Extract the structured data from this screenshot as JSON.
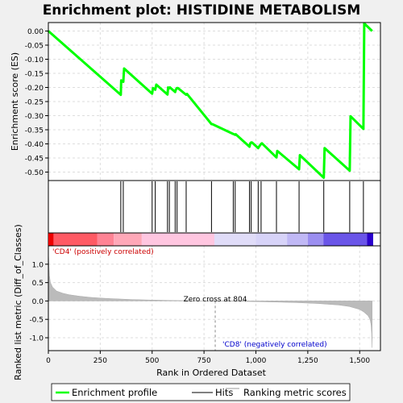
{
  "chart_data": {
    "type": "line",
    "title": "Enrichment plot: HISTIDINE METABOLISM",
    "top_panel": {
      "ylabel": "Enrichment score (ES)",
      "ylim": [
        -0.53,
        0.03
      ],
      "yticks": [
        0.0,
        -0.05,
        -0.1,
        -0.15,
        -0.2,
        -0.25,
        -0.3,
        -0.35,
        -0.4,
        -0.45,
        -0.5
      ],
      "ytick_labels": [
        "0.00",
        "-0.05",
        "-0.10",
        "-0.15",
        "-0.20",
        "-0.25",
        "-0.30",
        "-0.35",
        "-0.40",
        "-0.45",
        "-0.50"
      ],
      "grid": true,
      "line_color": "#00ff00",
      "series": [
        {
          "x": [
            0,
            349,
            351,
            361,
            365,
            500,
            504,
            515,
            520,
            574,
            577,
            583,
            586,
            611,
            614,
            620,
            624,
            664,
            668,
            786,
            790,
            891,
            895,
            900,
            903,
            969,
            973,
            977,
            981,
            1011,
            1015,
            1025,
            1029,
            1099,
            1103,
            1208,
            1212,
            1327,
            1331,
            1452,
            1456,
            1518,
            1522,
            1560
          ],
          "y": [
            0.0,
            -0.226,
            -0.175,
            -0.18,
            -0.133,
            -0.222,
            -0.202,
            -0.208,
            -0.19,
            -0.225,
            -0.2,
            -0.203,
            -0.2,
            -0.216,
            -0.208,
            -0.202,
            -0.202,
            -0.226,
            -0.223,
            -0.33,
            -0.33,
            -0.365,
            -0.366,
            -0.368,
            -0.366,
            -0.41,
            -0.398,
            -0.395,
            -0.395,
            -0.415,
            -0.41,
            -0.4,
            -0.398,
            -0.448,
            -0.425,
            -0.49,
            -0.44,
            -0.52,
            -0.415,
            -0.495,
            -0.302,
            -0.347,
            0.027,
            0.0
          ]
        }
      ]
    },
    "hits": [
      349,
      361,
      500,
      515,
      574,
      583,
      611,
      620,
      664,
      786,
      891,
      900,
      969,
      977,
      1011,
      1025,
      1099,
      1208,
      1327,
      1452,
      1518
    ],
    "bottom_panel": {
      "ylabel": "Ranked list metric (Diff_of_Classes)",
      "xlabel": "Rank in Ordered Dataset",
      "xlim": [
        0,
        1600
      ],
      "xticks": [
        0,
        250,
        500,
        750,
        1000,
        1250,
        1500
      ],
      "xtick_labels": [
        "0",
        "250",
        "500",
        "750",
        "1,000",
        "1,250",
        "1,500"
      ],
      "ylim": [
        -1.35,
        1.5
      ],
      "yticks": [
        1.0,
        0.5,
        0.0,
        -0.5,
        -1.0
      ],
      "ytick_labels": [
        "1.0",
        "0.5",
        "0.0",
        "-0.5",
        "-1.0"
      ],
      "grid": true,
      "metric_curve": {
        "x": [
          0,
          5,
          10,
          20,
          40,
          70,
          100,
          150,
          200,
          250,
          300,
          400,
          500,
          600,
          700,
          800,
          900,
          1000,
          1100,
          1200,
          1300,
          1400,
          1450,
          1500,
          1520,
          1540,
          1550,
          1555,
          1558,
          1560
        ],
        "y": [
          1.35,
          0.7,
          0.5,
          0.38,
          0.27,
          0.21,
          0.17,
          0.13,
          0.1,
          0.08,
          0.065,
          0.04,
          0.025,
          0.014,
          0.006,
          0.0,
          -0.008,
          -0.018,
          -0.03,
          -0.045,
          -0.07,
          -0.11,
          -0.15,
          -0.23,
          -0.3,
          -0.4,
          -0.5,
          -0.65,
          -0.9,
          -1.27
        ]
      },
      "zero_cross_rank": 804,
      "zero_cross_label": "Zero cross at 804",
      "pos_label": "'CD4' (positively correlated)",
      "neg_label": "'CD8' (negatively correlated)",
      "pos_color": "#cc0000",
      "neg_color": "#0000cc"
    },
    "color_bar": [
      {
        "start": 0,
        "end": 25,
        "color": "#ee0000"
      },
      {
        "start": 25,
        "end": 235,
        "color": "#ff5a64"
      },
      {
        "start": 235,
        "end": 315,
        "color": "#ff8394"
      },
      {
        "start": 315,
        "end": 450,
        "color": "#ffa8b8"
      },
      {
        "start": 450,
        "end": 800,
        "color": "#ffc6e0"
      },
      {
        "start": 800,
        "end": 1000,
        "color": "#e0dcf8"
      },
      {
        "start": 1000,
        "end": 1150,
        "color": "#d7d3f8"
      },
      {
        "start": 1150,
        "end": 1250,
        "color": "#c0b8f5"
      },
      {
        "start": 1250,
        "end": 1325,
        "color": "#9b8ef0"
      },
      {
        "start": 1325,
        "end": 1535,
        "color": "#6a55e8"
      },
      {
        "start": 1535,
        "end": 1565,
        "color": "#2a00cc"
      }
    ],
    "legend": {
      "placement": "bottom",
      "items": [
        {
          "label": "Enrichment profile",
          "color": "#00ff00"
        },
        {
          "label": "Hits",
          "color": "#000000"
        },
        {
          "label": "Ranking metric scores",
          "color": "#bbbbbb"
        }
      ]
    }
  }
}
